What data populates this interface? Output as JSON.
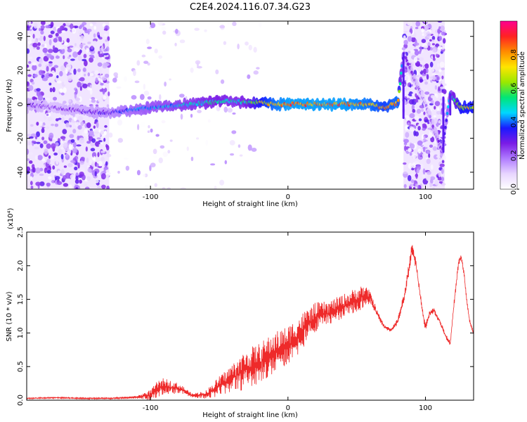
{
  "title": "C2E4.2024.116.07.34.G23",
  "colors": {
    "specline": "#e4003a",
    "snr": "#ee2a2a",
    "scatter_light": "#e6d0ff",
    "scatter_dark": "#6a00e8",
    "background": "#ffffff"
  },
  "chart_data": [
    {
      "type": "heatmap",
      "title": "C2E4.2024.116.07.34.G23",
      "xlabel": "Height of straight line (km)",
      "ylabel": "Frequency (Hz)",
      "xlim": [
        -190,
        135
      ],
      "ylim": [
        -50,
        49
      ],
      "xticks": [
        -100,
        0,
        100
      ],
      "xtick_labels": [
        "-100",
        "0",
        "100"
      ],
      "yticks": [
        -40,
        -20,
        0,
        20,
        40
      ],
      "ytick_labels": [
        "-40",
        "-20",
        "0",
        "20",
        "40"
      ],
      "grid": false,
      "colorbar": {
        "label": "Normalized spectral amplitude",
        "range": [
          0.0,
          1.0
        ],
        "ticks": [
          0.0,
          0.2,
          0.4,
          0.6,
          0.8
        ],
        "tick_labels": [
          "0.0",
          "0.2",
          "0.4",
          "0.6",
          "0.8"
        ],
        "colormap": "rainbow",
        "stops": [
          "#ffffff",
          "#e8d6ff",
          "#b07cff",
          "#7a1ce6",
          "#1a1aff",
          "#00d8ff",
          "#00e676",
          "#9be800",
          "#ffe500",
          "#ff8c00",
          "#ff2222",
          "#ff0090"
        ]
      },
      "ridge": {
        "description_free_values": true,
        "x": [
          -190,
          -170,
          -150,
          -130,
          -110,
          -90,
          -70,
          -50,
          -40,
          -30,
          -20,
          -10,
          0,
          20,
          40,
          60,
          70,
          80,
          84,
          100,
          112,
          118,
          125,
          135
        ],
        "frequency": [
          0,
          -2,
          -4,
          -5,
          -3,
          -1,
          0,
          2,
          2,
          1,
          1,
          0,
          0,
          0,
          0,
          0,
          -2,
          1,
          30,
          0,
          -28,
          6,
          -2,
          -2
        ],
        "amplitude": [
          0.3,
          0.25,
          0.3,
          0.35,
          0.45,
          0.5,
          0.55,
          0.6,
          0.55,
          0.6,
          0.8,
          0.9,
          0.95,
          0.95,
          0.95,
          0.9,
          0.85,
          0.9,
          0.3,
          0.2,
          0.3,
          0.5,
          0.8,
          0.8
        ]
      },
      "shaded_regions_x": [
        [
          -190,
          -130
        ],
        [
          84,
          114
        ]
      ]
    },
    {
      "type": "line",
      "xlabel": "Height of straight line (km)",
      "ylabel": "SNR (10 * v/v)",
      "scale_label": "(x10⁴)",
      "xlim": [
        -190,
        135
      ],
      "ylim": [
        0,
        2.5
      ],
      "xticks": [
        -100,
        0,
        100
      ],
      "xtick_labels": [
        "-100",
        "0",
        "100"
      ],
      "yticks": [
        0,
        0.5,
        1.0,
        1.5,
        2.0,
        2.5
      ],
      "ytick_labels": [
        "0.0",
        "0.5",
        "1.0",
        "1.5",
        "2.0",
        "2.5"
      ],
      "grid": false,
      "x": [
        -190,
        -170,
        -150,
        -130,
        -110,
        -100,
        -95,
        -90,
        -85,
        -80,
        -75,
        -70,
        -60,
        -50,
        -40,
        -30,
        -20,
        -10,
        0,
        10,
        15,
        20,
        30,
        40,
        50,
        55,
        60,
        65,
        70,
        75,
        80,
        85,
        88,
        90,
        93,
        96,
        99,
        100,
        103,
        106,
        110,
        115,
        118,
        120,
        124,
        126,
        128,
        130,
        132,
        135
      ],
      "y": [
        0.03,
        0.04,
        0.03,
        0.03,
        0.05,
        0.1,
        0.2,
        0.25,
        0.22,
        0.2,
        0.15,
        0.08,
        0.1,
        0.25,
        0.4,
        0.55,
        0.65,
        0.8,
        0.9,
        1.1,
        1.2,
        1.3,
        1.35,
        1.45,
        1.55,
        1.6,
        1.55,
        1.3,
        1.1,
        1.05,
        1.2,
        1.6,
        2.0,
        2.3,
        2.05,
        1.6,
        1.2,
        1.1,
        1.3,
        1.35,
        1.2,
        0.95,
        0.85,
        1.3,
        2.05,
        2.15,
        1.9,
        1.5,
        1.2,
        1.0
      ],
      "noise_amplitude": [
        0.01,
        0.01,
        0.01,
        0.01,
        0.02,
        0.08,
        0.12,
        0.12,
        0.1,
        0.08,
        0.06,
        0.03,
        0.06,
        0.15,
        0.22,
        0.3,
        0.3,
        0.3,
        0.3,
        0.28,
        0.25,
        0.22,
        0.18,
        0.18,
        0.18,
        0.18,
        0.1,
        0.05,
        0.03,
        0.03,
        0.05,
        0.08,
        0.12,
        0.1,
        0.08,
        0.06,
        0.06,
        0.06,
        0.05,
        0.04,
        0.04,
        0.04,
        0.04,
        0.05,
        0.05,
        0.04,
        0.04,
        0.04,
        0.03,
        0.03
      ]
    }
  ]
}
